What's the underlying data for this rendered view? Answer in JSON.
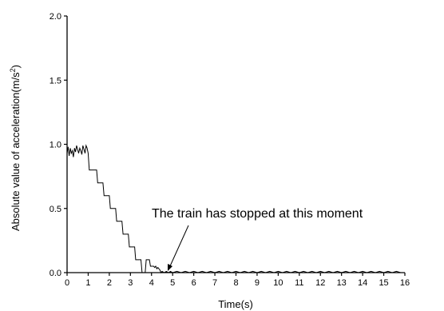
{
  "chart_data": {
    "type": "line",
    "xlabel": "Time(s)",
    "ylabel_main": "Absolute value of acceleration(m/s",
    "ylabel_sup": "2",
    "ylabel_tail": ")",
    "xlim": [
      0,
      16
    ],
    "ylim": [
      0,
      2.0
    ],
    "x_ticks": [
      0,
      1,
      2,
      3,
      4,
      5,
      6,
      7,
      8,
      9,
      10,
      11,
      12,
      13,
      14,
      15,
      16
    ],
    "x_tick_labels": [
      "0",
      "1",
      "2",
      "3",
      "4",
      "5",
      "6",
      "7",
      "8",
      "9",
      "10",
      "11",
      "12",
      "13",
      "14",
      "15",
      "16"
    ],
    "y_ticks": [
      0,
      0.5,
      1.0,
      1.5,
      2.0
    ],
    "y_tick_labels": [
      "0.0",
      "0.5",
      "1.0",
      "1.5",
      "2.0"
    ],
    "grid": false,
    "annotation": {
      "text": "The train has stopped at this moment",
      "points_to": [
        4.9,
        0.005
      ]
    },
    "series": [
      {
        "color": "#000000",
        "x": [
          0,
          0.05,
          0.1,
          0.15,
          0.2,
          0.25,
          0.3,
          0.35,
          0.4,
          0.45,
          0.5,
          0.55,
          0.6,
          0.65,
          0.7,
          0.75,
          0.8,
          0.85,
          0.9,
          0.95,
          1.0,
          1.05,
          1.1,
          1.4,
          1.45,
          1.7,
          1.75,
          2.0,
          2.05,
          2.3,
          2.35,
          2.6,
          2.65,
          2.9,
          2.95,
          3.2,
          3.25,
          3.5,
          3.55,
          3.7,
          3.75,
          3.9,
          3.95,
          4.1,
          4.15,
          4.2,
          4.25,
          4.3,
          4.35,
          4.4,
          4.45,
          4.5,
          4.6,
          4.7,
          4.8,
          4.9,
          5.0,
          5.2,
          5.4,
          5.6,
          5.8,
          6.0,
          6.2,
          6.4,
          6.6,
          6.8,
          7.0,
          7.2,
          7.4,
          7.6,
          7.8,
          8.0,
          8.2,
          8.4,
          8.6,
          8.8,
          9.0,
          9.2,
          9.4,
          9.6,
          9.8,
          10.0,
          10.2,
          10.4,
          10.6,
          10.8,
          11.0,
          11.2,
          11.4,
          11.6,
          11.8,
          12.0,
          12.2,
          12.4,
          12.6,
          12.8,
          13.0,
          13.2,
          13.4,
          13.6,
          13.8,
          14.0,
          14.2,
          14.4,
          14.6,
          14.8,
          15.0,
          15.2,
          15.4,
          15.6,
          15.8,
          16.0
        ],
        "y": [
          0.93,
          0.98,
          0.91,
          0.97,
          0.93,
          0.95,
          0.9,
          0.97,
          0.94,
          0.99,
          0.96,
          0.93,
          0.97,
          0.95,
          0.92,
          0.99,
          0.96,
          0.93,
          0.99,
          0.97,
          0.93,
          0.8,
          0.8,
          0.8,
          0.7,
          0.7,
          0.6,
          0.6,
          0.5,
          0.5,
          0.4,
          0.4,
          0.3,
          0.3,
          0.2,
          0.2,
          0.1,
          0.1,
          0.0,
          0.0,
          0.1,
          0.1,
          0.05,
          0.05,
          0.04,
          0.05,
          0.03,
          0.04,
          0.03,
          0.02,
          0.0,
          0.01,
          0.0,
          0.01,
          0.0,
          0.01,
          0.0,
          0.01,
          0.0,
          0.01,
          0.0,
          0.01,
          0.0,
          0.01,
          0.0,
          0.01,
          0.0,
          0.01,
          0.0,
          0.01,
          0.0,
          0.01,
          0.0,
          0.01,
          0.0,
          0.01,
          0.0,
          0.01,
          0.0,
          0.01,
          0.0,
          0.01,
          0.0,
          0.01,
          0.0,
          0.01,
          0.0,
          0.01,
          0.0,
          0.01,
          0.0,
          0.01,
          0.0,
          0.01,
          0.0,
          0.01,
          0.0,
          0.01,
          0.0,
          0.01,
          0.0,
          0.01,
          0.0,
          0.01,
          0.0,
          0.01,
          0.0,
          0.01,
          0.0,
          0.01,
          0.0,
          0.0
        ]
      }
    ]
  }
}
